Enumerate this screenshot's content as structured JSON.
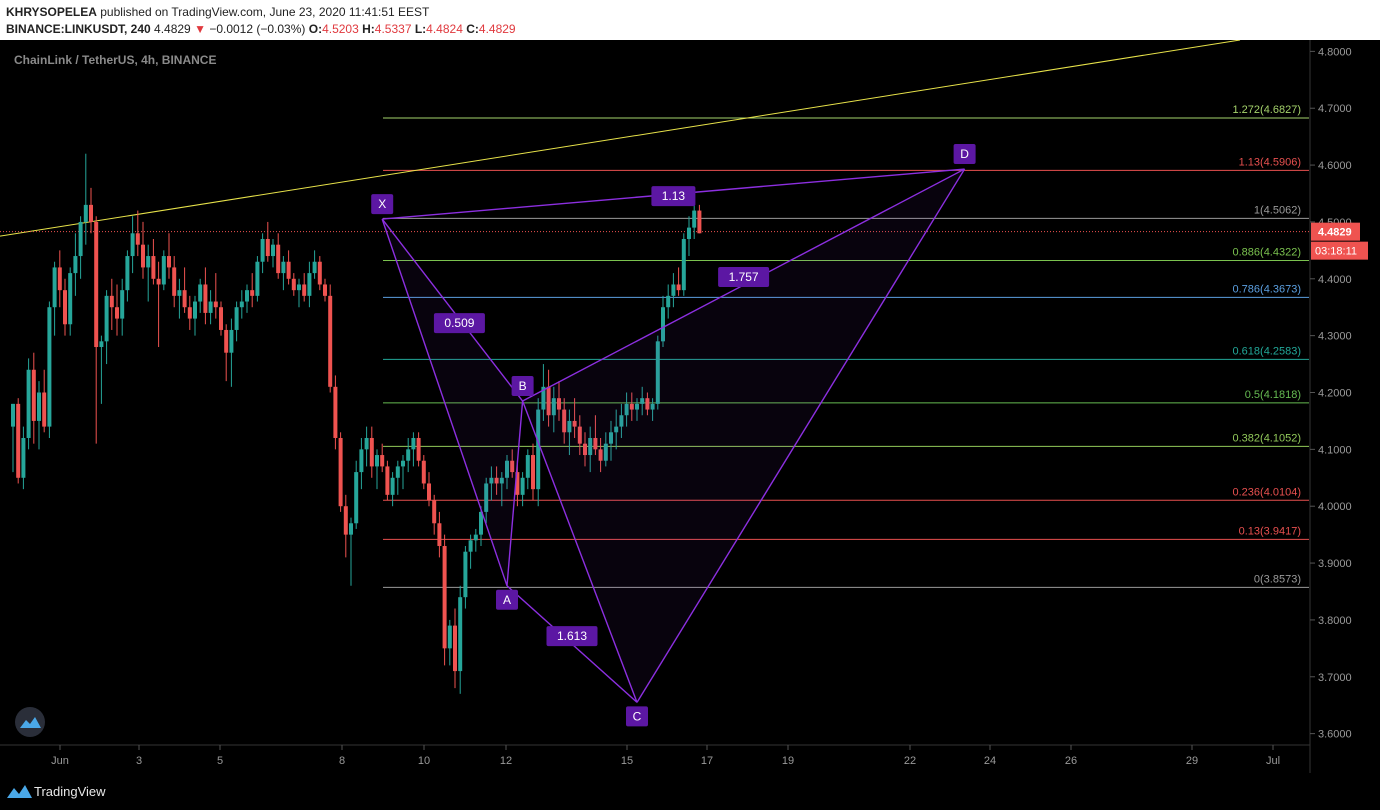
{
  "header": {
    "author": "KHRYSOPELEA",
    "published_text": "published on TradingView.com, June 23, 2020 11:41:51 EEST",
    "symbol": "BINANCE:LINKUSDT, 240",
    "last": "4.4829",
    "change_arrow": "▼",
    "change": "−0.0012 (−0.03%)",
    "o_label": "O:",
    "o": "4.5203",
    "h_label": "H:",
    "h": "4.5337",
    "l_label": "L:",
    "l": "4.4824",
    "c_label": "C:",
    "c": "4.4829"
  },
  "pane_title": "ChainLink / TetherUS, 4h, BINANCE",
  "footer": {
    "brand": "TradingView"
  },
  "colors": {
    "background": "#000000",
    "up": "#26a69a",
    "down": "#ef5350",
    "pattern": "#8c2fe0",
    "label_bg": "#5c17a3",
    "trendline": "#e8e34a",
    "axis_text": "#9a9a9a"
  },
  "chart_data": {
    "type": "candlestick",
    "y_axis": {
      "min": 3.58,
      "max": 4.82,
      "ticks": [
        "4.8000",
        "4.7000",
        "4.6000",
        "4.5000",
        "4.4000",
        "4.3000",
        "4.2000",
        "4.1000",
        "4.0000",
        "3.9000",
        "3.8000",
        "3.7000",
        "3.6000"
      ]
    },
    "x_axis": {
      "ticks": [
        "Jun",
        "3",
        "5",
        "8",
        "10",
        "12",
        "15",
        "17",
        "19",
        "22",
        "24",
        "26",
        "29",
        "Jul"
      ]
    },
    "last_price": {
      "value": 4.4829,
      "label": "4.4829",
      "countdown": "03:18:11"
    },
    "fib_levels": [
      {
        "label": "1.272(4.6827)",
        "value": 4.6827,
        "color": "#a5d36b"
      },
      {
        "label": "1.13(4.5906)",
        "value": 4.5906,
        "color": "#e8504f"
      },
      {
        "label": "1(4.5062)",
        "value": 4.5062,
        "color": "#9a9a9a"
      },
      {
        "label": "0.886(4.4322)",
        "value": 4.4322,
        "color": "#7bc24f"
      },
      {
        "label": "0.786(4.3673)",
        "value": 4.3673,
        "color": "#5b9fe0"
      },
      {
        "label": "0.618(4.2583)",
        "value": 4.2583,
        "color": "#22a899"
      },
      {
        "label": "0.5(4.1818)",
        "value": 4.1818,
        "color": "#66bb52"
      },
      {
        "label": "0.382(4.1052)",
        "value": 4.1052,
        "color": "#92c95a"
      },
      {
        "label": "0.236(4.0104)",
        "value": 4.0104,
        "color": "#e8504f"
      },
      {
        "label": "0.13(3.9417)",
        "value": 3.9417,
        "color": "#e8504f"
      },
      {
        "label": "0(3.8573)",
        "value": 3.8573,
        "color": "#9a9a9a"
      }
    ],
    "pattern_points": [
      {
        "name": "X",
        "value": 4.505
      },
      {
        "name": "A",
        "value": 3.86
      },
      {
        "name": "B",
        "value": 4.185
      },
      {
        "name": "C",
        "value": 3.655
      },
      {
        "name": "D",
        "value": 4.593
      }
    ],
    "ratios": [
      "0.509",
      "1.613",
      "1.757",
      "1.13"
    ],
    "candles": [
      [
        4.14,
        4.18,
        4.06,
        4.18
      ],
      [
        4.18,
        4.19,
        4.04,
        4.05
      ],
      [
        4.05,
        4.14,
        4.03,
        4.12
      ],
      [
        4.12,
        4.26,
        4.1,
        4.24
      ],
      [
        4.24,
        4.27,
        4.11,
        4.15
      ],
      [
        4.15,
        4.22,
        4.1,
        4.2
      ],
      [
        4.2,
        4.24,
        4.13,
        4.14
      ],
      [
        4.14,
        4.36,
        4.12,
        4.35
      ],
      [
        4.35,
        4.43,
        4.3,
        4.42
      ],
      [
        4.42,
        4.45,
        4.35,
        4.38
      ],
      [
        4.38,
        4.4,
        4.3,
        4.32
      ],
      [
        4.32,
        4.42,
        4.3,
        4.41
      ],
      [
        4.41,
        4.48,
        4.37,
        4.44
      ],
      [
        4.44,
        4.51,
        4.4,
        4.5
      ],
      [
        4.5,
        4.62,
        4.46,
        4.53
      ],
      [
        4.53,
        4.56,
        4.48,
        4.5
      ],
      [
        4.5,
        4.51,
        4.11,
        4.28
      ],
      [
        4.28,
        4.3,
        4.18,
        4.29
      ],
      [
        4.29,
        4.38,
        4.25,
        4.37
      ],
      [
        4.37,
        4.4,
        4.31,
        4.35
      ],
      [
        4.35,
        4.39,
        4.3,
        4.33
      ],
      [
        4.33,
        4.4,
        4.3,
        4.38
      ],
      [
        4.38,
        4.45,
        4.36,
        4.44
      ],
      [
        4.44,
        4.51,
        4.41,
        4.48
      ],
      [
        4.48,
        4.52,
        4.44,
        4.46
      ],
      [
        4.46,
        4.5,
        4.4,
        4.42
      ],
      [
        4.42,
        4.46,
        4.36,
        4.44
      ],
      [
        4.44,
        4.47,
        4.39,
        4.4
      ],
      [
        4.4,
        4.43,
        4.28,
        4.39
      ],
      [
        4.39,
        4.45,
        4.38,
        4.44
      ],
      [
        4.44,
        4.48,
        4.4,
        4.42
      ],
      [
        4.42,
        4.44,
        4.35,
        4.37
      ],
      [
        4.37,
        4.4,
        4.33,
        4.38
      ],
      [
        4.38,
        4.42,
        4.34,
        4.35
      ],
      [
        4.35,
        4.37,
        4.31,
        4.33
      ],
      [
        4.33,
        4.37,
        4.3,
        4.36
      ],
      [
        4.36,
        4.4,
        4.34,
        4.39
      ],
      [
        4.39,
        4.42,
        4.32,
        4.34
      ],
      [
        4.34,
        4.38,
        4.32,
        4.36
      ],
      [
        4.36,
        4.41,
        4.33,
        4.35
      ],
      [
        4.35,
        4.36,
        4.3,
        4.31
      ],
      [
        4.31,
        4.32,
        4.22,
        4.27
      ],
      [
        4.27,
        4.33,
        4.21,
        4.31
      ],
      [
        4.31,
        4.36,
        4.29,
        4.35
      ],
      [
        4.35,
        4.38,
        4.33,
        4.36
      ],
      [
        4.36,
        4.39,
        4.34,
        4.38
      ],
      [
        4.38,
        4.41,
        4.35,
        4.37
      ],
      [
        4.37,
        4.44,
        4.36,
        4.43
      ],
      [
        4.43,
        4.48,
        4.41,
        4.47
      ],
      [
        4.47,
        4.5,
        4.43,
        4.44
      ],
      [
        4.44,
        4.47,
        4.42,
        4.46
      ],
      [
        4.46,
        4.48,
        4.4,
        4.41
      ],
      [
        4.41,
        4.44,
        4.38,
        4.43
      ],
      [
        4.43,
        4.45,
        4.39,
        4.4
      ],
      [
        4.4,
        4.41,
        4.37,
        4.38
      ],
      [
        4.38,
        4.4,
        4.35,
        4.39
      ],
      [
        4.39,
        4.41,
        4.36,
        4.37
      ],
      [
        4.37,
        4.43,
        4.35,
        4.41
      ],
      [
        4.41,
        4.45,
        4.4,
        4.43
      ],
      [
        4.43,
        4.44,
        4.38,
        4.39
      ],
      [
        4.39,
        4.4,
        4.36,
        4.37
      ],
      [
        4.37,
        4.39,
        4.2,
        4.21
      ],
      [
        4.21,
        4.23,
        4.1,
        4.12
      ],
      [
        4.12,
        4.13,
        3.99,
        4.0
      ],
      [
        4.0,
        4.02,
        3.91,
        3.95
      ],
      [
        3.95,
        3.98,
        3.86,
        3.97
      ],
      [
        3.97,
        4.08,
        3.96,
        4.06
      ],
      [
        4.06,
        4.12,
        4.03,
        4.1
      ],
      [
        4.1,
        4.14,
        4.07,
        4.12
      ],
      [
        4.12,
        4.14,
        4.05,
        4.07
      ],
      [
        4.07,
        4.1,
        4.03,
        4.09
      ],
      [
        4.09,
        4.11,
        4.06,
        4.07
      ],
      [
        4.07,
        4.08,
        4.01,
        4.02
      ],
      [
        4.02,
        4.06,
        4.0,
        4.05
      ],
      [
        4.05,
        4.08,
        4.02,
        4.07
      ],
      [
        4.07,
        4.09,
        4.03,
        4.08
      ],
      [
        4.08,
        4.12,
        4.06,
        4.1
      ],
      [
        4.1,
        4.13,
        4.07,
        4.12
      ],
      [
        4.12,
        4.13,
        4.07,
        4.08
      ],
      [
        4.08,
        4.09,
        4.03,
        4.04
      ],
      [
        4.04,
        4.06,
        4.0,
        4.01
      ],
      [
        4.01,
        4.02,
        3.95,
        3.97
      ],
      [
        3.97,
        3.99,
        3.91,
        3.93
      ],
      [
        3.93,
        3.95,
        3.72,
        3.75
      ],
      [
        3.75,
        3.8,
        3.72,
        3.79
      ],
      [
        3.79,
        3.82,
        3.68,
        3.71
      ],
      [
        3.71,
        3.86,
        3.67,
        3.84
      ],
      [
        3.84,
        3.93,
        3.82,
        3.92
      ],
      [
        3.92,
        3.95,
        3.89,
        3.94
      ],
      [
        3.94,
        3.96,
        3.92,
        3.95
      ],
      [
        3.95,
        4.0,
        3.93,
        3.99
      ],
      [
        3.99,
        4.05,
        3.97,
        4.04
      ],
      [
        4.04,
        4.07,
        4.01,
        4.05
      ],
      [
        4.05,
        4.07,
        4.02,
        4.04
      ],
      [
        4.04,
        4.06,
        4.0,
        4.05
      ],
      [
        4.05,
        4.09,
        4.03,
        4.08
      ],
      [
        4.08,
        4.1,
        4.05,
        4.06
      ],
      [
        4.06,
        4.08,
        4.0,
        4.02
      ],
      [
        4.02,
        4.06,
        4.0,
        4.05
      ],
      [
        4.05,
        4.1,
        4.03,
        4.09
      ],
      [
        4.09,
        4.11,
        4.01,
        4.03
      ],
      [
        4.03,
        4.19,
        4.0,
        4.17
      ],
      [
        4.17,
        4.25,
        4.15,
        4.21
      ],
      [
        4.21,
        4.24,
        4.14,
        4.16
      ],
      [
        4.16,
        4.21,
        4.13,
        4.19
      ],
      [
        4.19,
        4.22,
        4.15,
        4.17
      ],
      [
        4.17,
        4.19,
        4.11,
        4.13
      ],
      [
        4.13,
        4.17,
        4.09,
        4.15
      ],
      [
        4.15,
        4.19,
        4.12,
        4.14
      ],
      [
        4.14,
        4.16,
        4.09,
        4.11
      ],
      [
        4.11,
        4.13,
        4.07,
        4.09
      ],
      [
        4.09,
        4.14,
        4.06,
        4.12
      ],
      [
        4.12,
        4.16,
        4.09,
        4.1
      ],
      [
        4.1,
        4.12,
        4.06,
        4.08
      ],
      [
        4.08,
        4.13,
        4.07,
        4.11
      ],
      [
        4.11,
        4.15,
        4.08,
        4.13
      ],
      [
        4.13,
        4.17,
        4.1,
        4.14
      ],
      [
        4.14,
        4.18,
        4.12,
        4.16
      ],
      [
        4.16,
        4.2,
        4.14,
        4.18
      ],
      [
        4.18,
        4.2,
        4.15,
        4.17
      ],
      [
        4.17,
        4.19,
        4.15,
        4.18
      ],
      [
        4.18,
        4.21,
        4.16,
        4.19
      ],
      [
        4.19,
        4.2,
        4.16,
        4.17
      ],
      [
        4.17,
        4.19,
        4.15,
        4.18
      ],
      [
        4.18,
        4.3,
        4.17,
        4.29
      ],
      [
        4.29,
        4.37,
        4.28,
        4.35
      ],
      [
        4.35,
        4.39,
        4.33,
        4.37
      ],
      [
        4.37,
        4.41,
        4.35,
        4.39
      ],
      [
        4.39,
        4.42,
        4.37,
        4.38
      ],
      [
        4.38,
        4.48,
        4.37,
        4.47
      ],
      [
        4.47,
        4.51,
        4.44,
        4.49
      ],
      [
        4.49,
        4.55,
        4.47,
        4.52
      ],
      [
        4.52,
        4.53,
        4.48,
        4.48
      ]
    ]
  }
}
